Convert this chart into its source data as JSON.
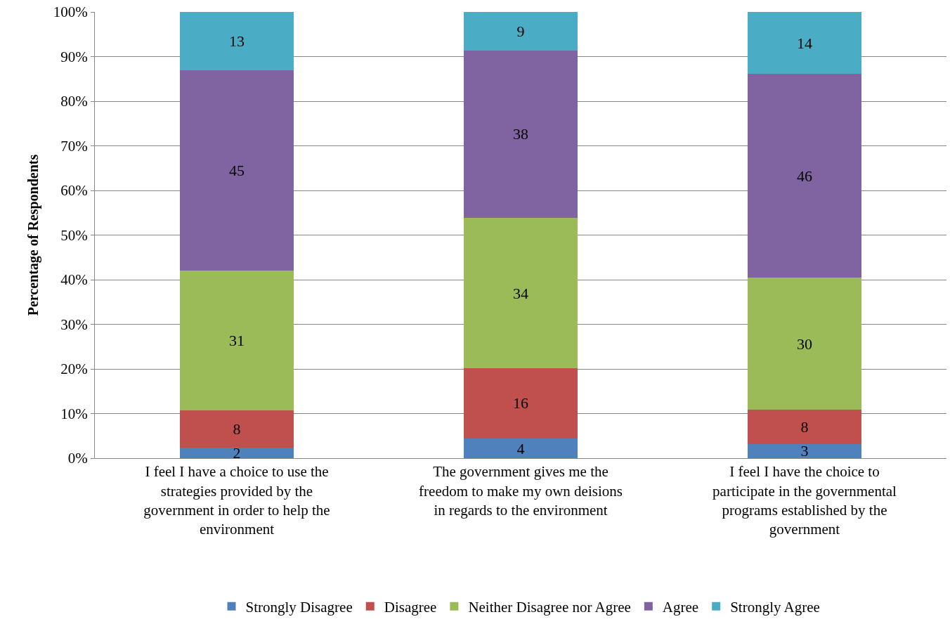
{
  "chart_data": {
    "type": "bar",
    "stacked": true,
    "ylabel": "Percentage of Respondents",
    "categories": [
      "I feel I have a choice to use the strategies provided by the government in order to help the environment",
      "The government gives me the freedom to make my own deisions in regards to the environment",
      "I feel I have the choice to participate in the governmental programs established by the government"
    ],
    "series": [
      {
        "name": "Strongly Disagree",
        "color": "#4f81bd",
        "values": [
          2.3,
          4.4,
          3.2
        ],
        "value_labels": [
          "2",
          "4",
          "3"
        ]
      },
      {
        "name": "Disagree",
        "color": "#c0504d",
        "values": [
          8.4,
          15.8,
          7.6
        ],
        "value_labels": [
          "8",
          "16",
          "8"
        ]
      },
      {
        "name": "Neither Disagree nor Agree",
        "color": "#9bbb59",
        "values": [
          31.3,
          33.6,
          29.7
        ],
        "value_labels": [
          "31",
          "34",
          "30"
        ]
      },
      {
        "name": "Agree",
        "color": "#8064a2",
        "values": [
          45.0,
          37.6,
          45.6
        ],
        "value_labels": [
          "45",
          "38",
          "46"
        ]
      },
      {
        "name": "Strongly Agree",
        "color": "#4bacc6",
        "values": [
          13.0,
          8.6,
          13.9
        ],
        "value_labels": [
          "13",
          "9",
          "14"
        ]
      }
    ],
    "ylim": [
      0,
      100
    ],
    "yticks": [
      {
        "value": 0,
        "label": "0%"
      },
      {
        "value": 10,
        "label": "10%"
      },
      {
        "value": 20,
        "label": "20%"
      },
      {
        "value": 30,
        "label": "30%"
      },
      {
        "value": 40,
        "label": "40%"
      },
      {
        "value": 50,
        "label": "50%"
      },
      {
        "value": 60,
        "label": "60%"
      },
      {
        "value": 70,
        "label": "70%"
      },
      {
        "value": 80,
        "label": "80%"
      },
      {
        "value": 90,
        "label": "90%"
      },
      {
        "value": 100,
        "label": "100%"
      }
    ],
    "grid": "y",
    "legend": "bottom"
  }
}
